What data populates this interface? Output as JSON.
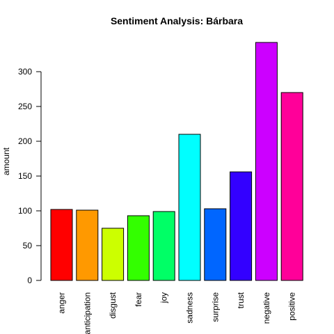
{
  "chart_data": {
    "type": "bar",
    "title": "Sentiment Analysis: Bárbara",
    "xlabel": "",
    "ylabel": "amount",
    "ylim": [
      0,
      340
    ],
    "yticks": [
      0,
      50,
      100,
      150,
      200,
      250,
      300
    ],
    "grid": false,
    "categories": [
      "anger",
      "anticipation",
      "disgust",
      "fear",
      "joy",
      "sadness",
      "surprise",
      "trust",
      "negative",
      "positive"
    ],
    "values": [
      102,
      101,
      75,
      93,
      99,
      210,
      103,
      156,
      342,
      270
    ],
    "colors": [
      "#FF0000",
      "#FF9900",
      "#CCFF00",
      "#33FF00",
      "#00FF66",
      "#00FFFF",
      "#0066FF",
      "#3300FF",
      "#CC00FF",
      "#FF0099"
    ]
  }
}
